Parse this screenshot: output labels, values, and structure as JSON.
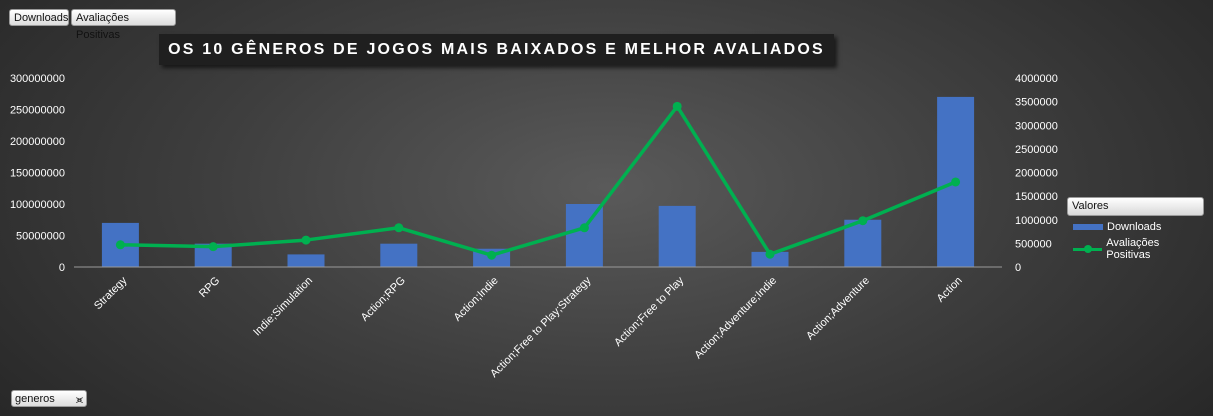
{
  "fields": {
    "downloads_label": "Downloads",
    "ratings_label": "Avaliações Positivas"
  },
  "filter": {
    "label": "generos",
    "icon": "filter-icon"
  },
  "legend": {
    "title": "Valores"
  },
  "chart_data": {
    "type": "bar",
    "title": "OS 10 GÊNEROS DE JOGOS MAIS BAIXADOS E MELHOR AVALIADOS",
    "categories": [
      "Strategy",
      "RPG",
      "Indie;Simulation",
      "Action;RPG",
      "Action;Indie",
      "Action;Free to Play;Strategy",
      "Action;Free to Play",
      "Action;Adventure;Indie",
      "Action;Adventure",
      "Action"
    ],
    "series": [
      {
        "name": "Downloads",
        "type": "bar",
        "axis": "left",
        "color": "#4472c4",
        "values": [
          70000000,
          37000000,
          20000000,
          37000000,
          29000000,
          100000000,
          97000000,
          24000000,
          75000000,
          270000000
        ]
      },
      {
        "name": "Avaliações Positivas",
        "type": "line",
        "axis": "right",
        "color": "#00b050",
        "values": [
          470000,
          430000,
          570000,
          830000,
          250000,
          830000,
          3400000,
          270000,
          980000,
          1800000
        ]
      }
    ],
    "y_left": {
      "min": 0,
      "max": 300000000,
      "ticks": [
        "0",
        "50000000",
        "100000000",
        "150000000",
        "200000000",
        "250000000",
        "300000000"
      ]
    },
    "y_right": {
      "min": 0,
      "max": 4000000,
      "ticks": [
        "0",
        "500000",
        "1000000",
        "1500000",
        "2000000",
        "2500000",
        "3000000",
        "3500000",
        "4000000"
      ]
    },
    "grid": false,
    "legend_position": "right"
  }
}
